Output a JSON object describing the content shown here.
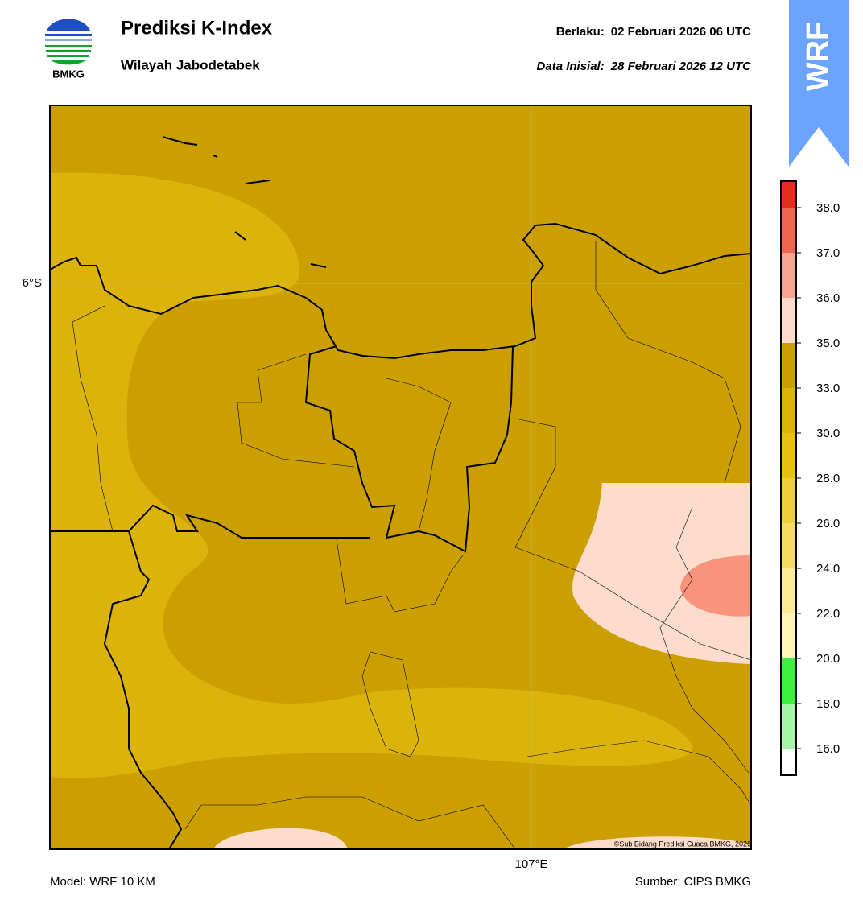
{
  "header": {
    "logo": "BMKG",
    "title": "Prediksi K-Index",
    "subtitle": "Wilayah Jabodetabek",
    "valid_label": "Berlaku:",
    "valid": "02 Februari 2026 06 UTC",
    "init_label": "Data Inisial:",
    "init": "28 Februari 2026 12 UTC",
    "badge": "WRF"
  },
  "map": {
    "lat_label": "6°S",
    "lon_label": "107°E",
    "credit": "©Sub Bidang Prediksi Cuaca BMKG, 2026"
  },
  "colorbar": {
    "ticks": [
      {
        "value": 16,
        "label": "16.0"
      },
      {
        "value": 18,
        "label": "18.0"
      },
      {
        "value": 20,
        "label": "20.0"
      },
      {
        "value": 22,
        "label": "22.0"
      },
      {
        "value": 24,
        "label": "24.0"
      },
      {
        "value": 26,
        "label": "26.0"
      },
      {
        "value": 28,
        "label": "28.0"
      },
      {
        "value": 30,
        "label": "30.0"
      },
      {
        "value": 33,
        "label": "33.0"
      },
      {
        "value": 35,
        "label": "35.0"
      },
      {
        "value": 36,
        "label": "36.0"
      },
      {
        "value": 37,
        "label": "37.0"
      },
      {
        "value": 38,
        "label": "38.0"
      }
    ],
    "colors": [
      "#ffffff",
      "#a4f5a4",
      "#3cf03c",
      "#fff5b4",
      "#ffeb96",
      "#f7dc64",
      "#f0cd3c",
      "#e8c014",
      "#dbb30a",
      "#cc9f00",
      "#fedccb",
      "#f8a48f",
      "#f06450",
      "#e2301e"
    ]
  },
  "footer": {
    "model": "Model: WRF 10 KM",
    "source": "Sumber: CIPS BMKG"
  }
}
